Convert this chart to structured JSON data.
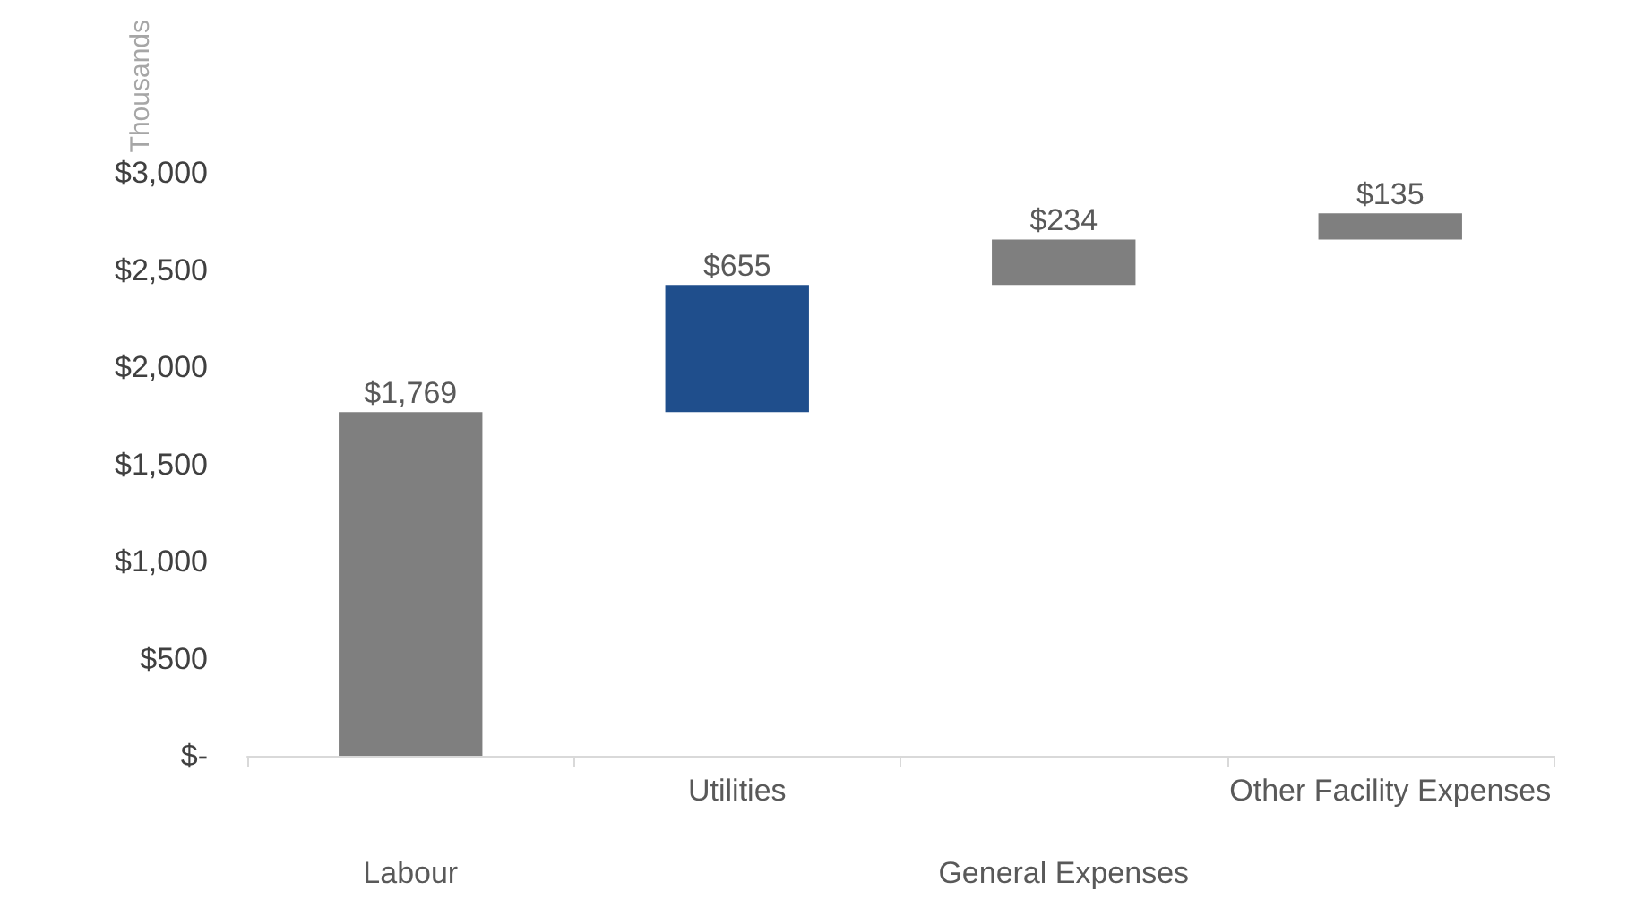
{
  "chart_data": {
    "type": "bar",
    "ylabel": "Thousands",
    "categories": [
      "Labour",
      "Utilities",
      "General Expenses",
      "Other Facility Expenses"
    ],
    "values": [
      1769,
      655,
      234,
      135
    ],
    "base": [
      0,
      1769,
      2424,
      2658
    ],
    "colors": [
      "#7f7f7f",
      "#1f4e8c",
      "#7f7f7f",
      "#7f7f7f"
    ],
    "value_labels": [
      "$1,769",
      "$655",
      "$234",
      "$135"
    ],
    "ylim": [
      0,
      3000
    ],
    "yticks": [
      {
        "value": 0,
        "label": "$-"
      },
      {
        "value": 500,
        "label": "$500"
      },
      {
        "value": 1000,
        "label": "$1,000"
      },
      {
        "value": 1500,
        "label": "$1,500"
      },
      {
        "value": 2000,
        "label": "$2,000"
      },
      {
        "value": 2500,
        "label": "$2,500"
      },
      {
        "value": 3000,
        "label": "$3,000"
      }
    ],
    "grid": false
  }
}
